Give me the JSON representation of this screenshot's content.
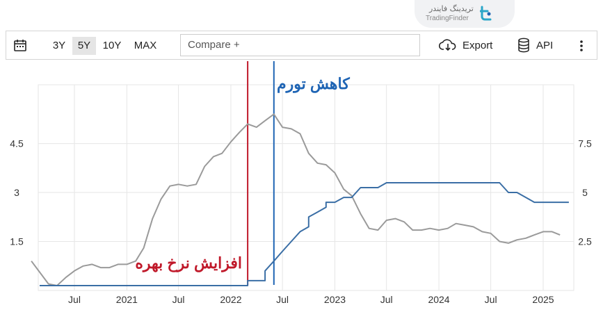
{
  "watermark": {
    "brand_fa": "تریدینگ فایندر",
    "brand_en": "TradingFinder"
  },
  "toolbar": {
    "ranges": [
      "3Y",
      "5Y",
      "10Y",
      "MAX"
    ],
    "active_range": "5Y",
    "compare_placeholder": "Compare +",
    "export_label": "Export",
    "api_label": "API",
    "icons": {
      "calendar": "calendar-icon",
      "export": "cloud-download-icon",
      "api": "database-icon",
      "more": "more-vertical-icon"
    }
  },
  "annotations": {
    "rate_hike_label": "افزایش نرخ بهره",
    "disinflation_label": "کاهش تورم",
    "rate_hike_color": "#c0192a",
    "disinflation_color": "#1e64b4"
  },
  "chart_data": {
    "type": "line",
    "x_tick_labels": [
      "Jul",
      "2021",
      "Jul",
      "2022",
      "Jul",
      "2023",
      "Jul",
      "2024",
      "Jul",
      "2025"
    ],
    "x_tick_dates": [
      "2020-07",
      "2021-01",
      "2021-07",
      "2022-01",
      "2022-07",
      "2023-01",
      "2023-07",
      "2024-01",
      "2024-07",
      "2025-01"
    ],
    "y_left": {
      "ticks": [
        "1.5",
        "3",
        "4.5"
      ],
      "range": [
        0,
        6.3
      ]
    },
    "y_right": {
      "ticks": [
        "2.5",
        "5",
        "7.5"
      ],
      "range": [
        0,
        10.5
      ]
    },
    "series": [
      {
        "color": "#9a9a9a",
        "axis": "left",
        "points": [
          [
            "2020-02",
            0.9
          ],
          [
            "2020-04",
            0.2
          ],
          [
            "2020-05",
            0.15
          ],
          [
            "2020-06",
            0.4
          ],
          [
            "2020-07",
            0.6
          ],
          [
            "2020-08",
            0.75
          ],
          [
            "2020-09",
            0.8
          ],
          [
            "2020-10",
            0.7
          ],
          [
            "2020-11",
            0.7
          ],
          [
            "2020-12",
            0.8
          ],
          [
            "2021-01",
            0.8
          ],
          [
            "2021-02",
            0.9
          ],
          [
            "2021-03",
            1.3
          ],
          [
            "2021-04",
            2.2
          ],
          [
            "2021-05",
            2.8
          ],
          [
            "2021-06",
            3.2
          ],
          [
            "2021-07",
            3.25
          ],
          [
            "2021-08",
            3.2
          ],
          [
            "2021-09",
            3.25
          ],
          [
            "2021-10",
            3.8
          ],
          [
            "2021-11",
            4.1
          ],
          [
            "2021-12",
            4.2
          ],
          [
            "2022-01",
            4.55
          ],
          [
            "2022-02",
            4.85
          ],
          [
            "2022-03",
            5.1
          ],
          [
            "2022-04",
            5.0
          ],
          [
            "2022-05",
            5.2
          ],
          [
            "2022-06",
            5.4
          ],
          [
            "2022-07",
            5.0
          ],
          [
            "2022-08",
            4.95
          ],
          [
            "2022-09",
            4.8
          ],
          [
            "2022-10",
            4.2
          ],
          [
            "2022-11",
            3.9
          ],
          [
            "2022-12",
            3.85
          ],
          [
            "2023-01",
            3.6
          ],
          [
            "2023-02",
            3.1
          ],
          [
            "2023-03",
            2.9
          ],
          [
            "2023-04",
            2.35
          ],
          [
            "2023-05",
            1.9
          ],
          [
            "2023-06",
            1.85
          ],
          [
            "2023-07",
            2.15
          ],
          [
            "2023-08",
            2.2
          ],
          [
            "2023-09",
            2.1
          ],
          [
            "2023-10",
            1.85
          ],
          [
            "2023-11",
            1.85
          ],
          [
            "2023-12",
            1.9
          ],
          [
            "2024-01",
            1.85
          ],
          [
            "2024-02",
            1.9
          ],
          [
            "2024-03",
            2.05
          ],
          [
            "2024-04",
            2.0
          ],
          [
            "2024-05",
            1.95
          ],
          [
            "2024-06",
            1.8
          ],
          [
            "2024-07",
            1.75
          ],
          [
            "2024-08",
            1.5
          ],
          [
            "2024-09",
            1.45
          ],
          [
            "2024-10",
            1.55
          ],
          [
            "2024-11",
            1.6
          ],
          [
            "2024-12",
            1.7
          ],
          [
            "2025-01",
            1.8
          ],
          [
            "2025-02",
            1.8
          ],
          [
            "2025-03",
            1.7
          ]
        ]
      },
      {
        "color": "#3a6ea5",
        "axis": "right",
        "points": [
          [
            "2020-03",
            0.25
          ],
          [
            "2022-03",
            0.25
          ],
          [
            "2022-03",
            0.5
          ],
          [
            "2022-05",
            0.5
          ],
          [
            "2022-05",
            1.0
          ],
          [
            "2022-06",
            1.5
          ],
          [
            "2022-07",
            2.0
          ],
          [
            "2022-08",
            2.5
          ],
          [
            "2022-09",
            3.0
          ],
          [
            "2022-10",
            3.25
          ],
          [
            "2022-10",
            3.75
          ],
          [
            "2022-11",
            4.0
          ],
          [
            "2022-12",
            4.25
          ],
          [
            "2022-12",
            4.5
          ],
          [
            "2023-01",
            4.5
          ],
          [
            "2023-02",
            4.75
          ],
          [
            "2023-03",
            4.75
          ],
          [
            "2023-04",
            5.25
          ],
          [
            "2023-05",
            5.25
          ],
          [
            "2023-06",
            5.25
          ],
          [
            "2023-07",
            5.5
          ],
          [
            "2024-08",
            5.5
          ],
          [
            "2024-09",
            5.0
          ],
          [
            "2024-10",
            5.0
          ],
          [
            "2024-11",
            4.75
          ],
          [
            "2024-12",
            4.5
          ],
          [
            "2025-04",
            4.5
          ]
        ]
      }
    ],
    "markers": [
      {
        "date": "2022-03",
        "color": "#c0192a",
        "label": "افزایش نرخ بهره"
      },
      {
        "date": "2022-06",
        "color": "#1e64b4",
        "label": "کاهش تورم"
      }
    ],
    "grid": true
  }
}
